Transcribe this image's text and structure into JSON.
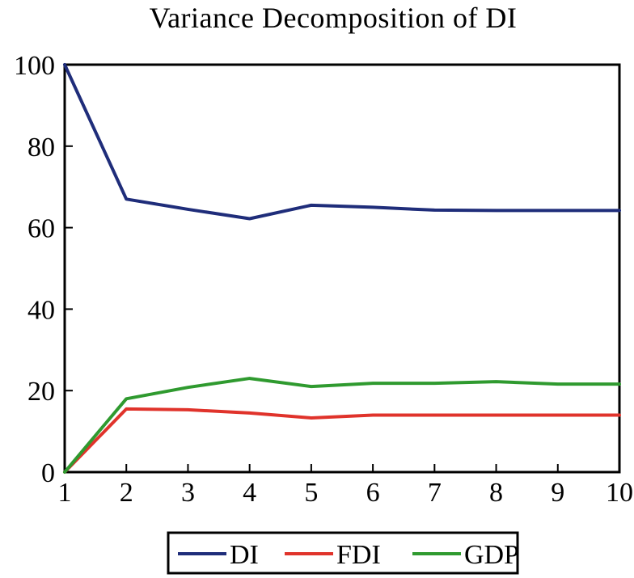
{
  "chart_data": {
    "type": "line",
    "title": "Variance Decomposition of DI",
    "xlabel": "",
    "ylabel": "",
    "xlim": [
      1,
      10
    ],
    "ylim": [
      0,
      100
    ],
    "x_ticks": [
      "1",
      "2",
      "3",
      "4",
      "5",
      "6",
      "7",
      "8",
      "9",
      "10"
    ],
    "y_ticks": [
      "0",
      "20",
      "40",
      "60",
      "80",
      "100"
    ],
    "x": [
      1,
      2,
      3,
      4,
      5,
      6,
      7,
      8,
      9,
      10
    ],
    "series": [
      {
        "name": "DI",
        "color": "#1f2d7a",
        "values": [
          100,
          67,
          64.5,
          62.2,
          65.5,
          65,
          64.3,
          64.2,
          64.2,
          64.2
        ]
      },
      {
        "name": "FDI",
        "color": "#e0332b",
        "values": [
          0,
          15.5,
          15.3,
          14.5,
          13.3,
          14,
          14,
          14,
          14,
          14
        ]
      },
      {
        "name": "GDP",
        "color": "#2f9a2f",
        "values": [
          0,
          18,
          20.8,
          23,
          21,
          21.8,
          21.8,
          22.2,
          21.6,
          21.6
        ]
      }
    ],
    "grid": false,
    "legend_position": "bottom"
  }
}
